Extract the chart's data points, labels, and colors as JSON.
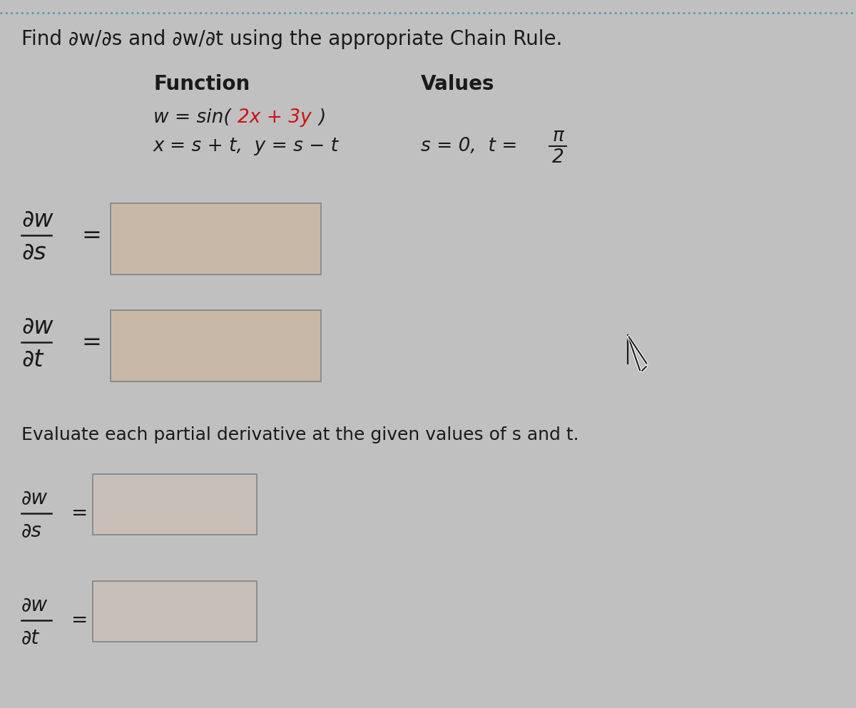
{
  "bg_color": "#c0c0c0",
  "title_text": "Find ∂w/∂s and ∂w/∂t using the appropriate Chain Rule.",
  "title_fontsize": 20,
  "function_label": "Function",
  "values_label": "Values",
  "evaluate_text": "Evaluate each partial derivative at the given values of s and t.",
  "evaluate_fontsize": 18,
  "header_fontsize": 20,
  "func_fontsize": 19,
  "partial_fontsize": 24,
  "small_partial_fontsize": 20,
  "text_color": "#1a1a1a",
  "red_color": "#cc1111",
  "dotted_line_color": "#5599bb",
  "box_color_top": "#c8b8a8",
  "box_color_bottom": "#c8c0b8",
  "box_border": "#888888",
  "cursor_color": "#1a1a1a"
}
